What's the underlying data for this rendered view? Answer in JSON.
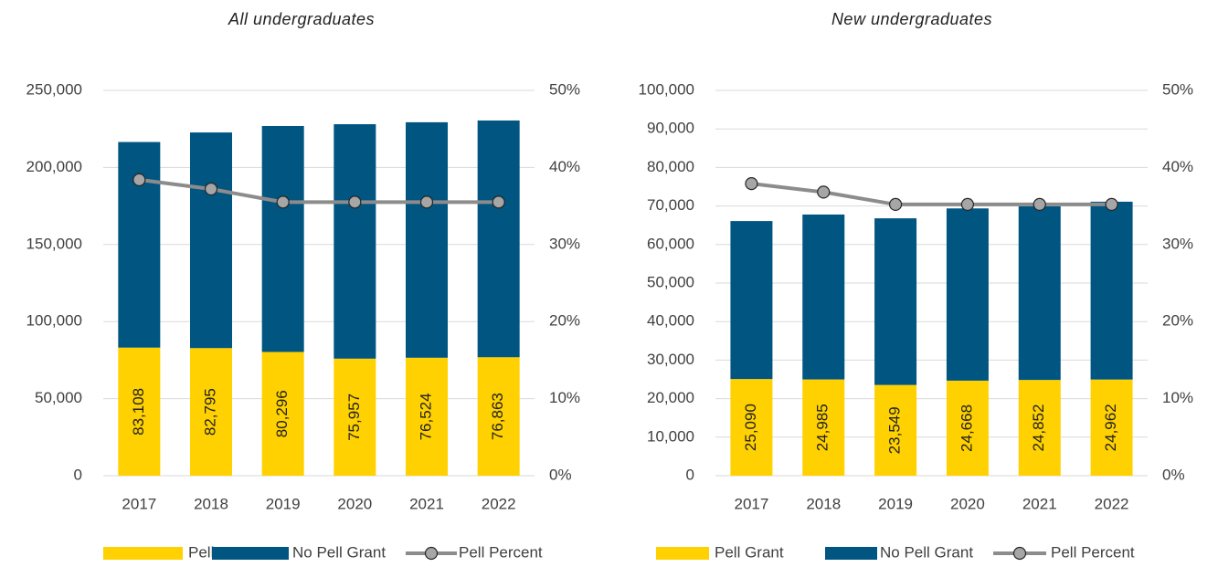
{
  "chart_data": [
    {
      "type": "bar",
      "subtitle": "All undergraduates",
      "categories": [
        "2017",
        "2018",
        "2019",
        "2020",
        "2021",
        "2022"
      ],
      "series": [
        {
          "name": "Pell Grant",
          "color": "#FFD100",
          "values": [
            83108,
            82795,
            80296,
            75957,
            76524,
            76863
          ],
          "value_labels": [
            "83,108",
            "82,795",
            "80,296",
            "75,957",
            "76,524",
            "76,863"
          ]
        },
        {
          "name": "No Pell Grant",
          "color": "#005581",
          "values": [
            133400,
            139900,
            146600,
            152100,
            152800,
            153600
          ]
        },
        {
          "name": "Pell Percent",
          "color": "#8c8c8c",
          "type": "line",
          "axis": "y2",
          "values": [
            38.4,
            37.2,
            35.5,
            35.5,
            35.5,
            35.5
          ]
        }
      ],
      "ylim": [
        0,
        250000
      ],
      "yticks": [
        0,
        {
          "value": 50000,
          "label": "50,000"
        },
        {
          "value": 100000,
          "label": "100,000"
        },
        {
          "value": 150000,
          "label": "150,000"
        },
        {
          "value": 200000,
          "label": "200,000"
        },
        {
          "value": 250000,
          "label": "250,000"
        }
      ],
      "y2lim": [
        0,
        50
      ],
      "y2ticks": [
        {
          "value": 0,
          "label": "0%"
        },
        {
          "value": 10,
          "label": "10%"
        },
        {
          "value": 20,
          "label": "20%"
        },
        {
          "value": 30,
          "label": "30%"
        },
        {
          "value": 40,
          "label": "40%"
        },
        {
          "value": 50,
          "label": "50%"
        }
      ],
      "grid": true,
      "legend": "bottom"
    },
    {
      "type": "bar",
      "subtitle": "New undergraduates",
      "categories": [
        "2017",
        "2018",
        "2019",
        "2020",
        "2021",
        "2022"
      ],
      "series": [
        {
          "name": "Pell Grant",
          "color": "#FFD100",
          "values": [
            25090,
            24985,
            23549,
            24668,
            24852,
            24962
          ],
          "value_labels": [
            "25,090",
            "24,985",
            "23,549",
            "24,668",
            "24,852",
            "24,962"
          ]
        },
        {
          "name": "No Pell Grant",
          "color": "#005581",
          "values": [
            41000,
            42800,
            43250,
            44700,
            45050,
            46150
          ]
        },
        {
          "name": "Pell Percent",
          "color": "#8c8c8c",
          "type": "line",
          "axis": "y2",
          "values": [
            37.9,
            36.8,
            35.2,
            35.2,
            35.2,
            35.2
          ]
        }
      ],
      "ylim": [
        0,
        100000
      ],
      "yticks": [
        0,
        {
          "value": 10000,
          "label": "10,000"
        },
        {
          "value": 20000,
          "label": "20,000"
        },
        {
          "value": 30000,
          "label": "30,000"
        },
        {
          "value": 40000,
          "label": "40,000"
        },
        {
          "value": 50000,
          "label": "50,000"
        },
        {
          "value": 60000,
          "label": "60,000"
        },
        {
          "value": 70000,
          "label": "70,000"
        },
        {
          "value": 80000,
          "label": "80,000"
        },
        {
          "value": 90000,
          "label": "90,000"
        },
        {
          "value": 100000,
          "label": "100,000"
        }
      ],
      "y2lim": [
        0,
        50
      ],
      "y2ticks": [
        {
          "value": 0,
          "label": "0%"
        },
        {
          "value": 10,
          "label": "10%"
        },
        {
          "value": 20,
          "label": "20%"
        },
        {
          "value": 30,
          "label": "30%"
        },
        {
          "value": 40,
          "label": "40%"
        },
        {
          "value": 50,
          "label": "50%"
        }
      ],
      "grid": true,
      "legend": "bottom"
    }
  ]
}
